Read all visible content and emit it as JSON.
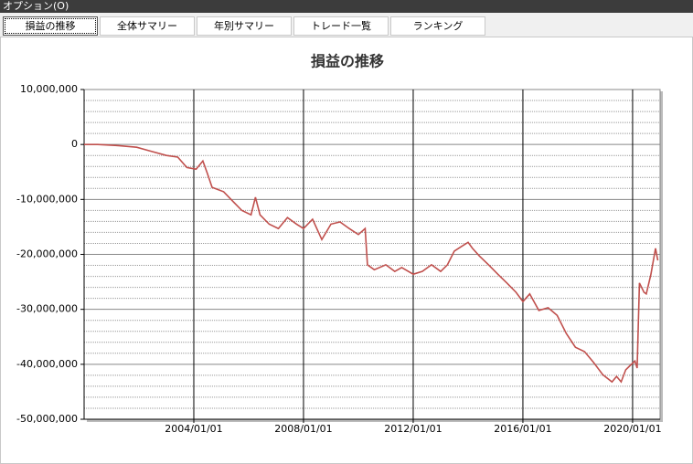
{
  "menu": {
    "title": "オプション(O)"
  },
  "tabs": [
    "損益の推移",
    "全体サマリー",
    "年別サマリー",
    "トレード一覧",
    "ランキング"
  ],
  "chart_data": {
    "type": "line",
    "title": "損益の推移",
    "x": [
      "2000/01/01",
      "2000/07/01",
      "2001/04/01",
      "2001/12/01",
      "2002/06/01",
      "2003/01/01",
      "2003/06/01",
      "2003/10/01",
      "2004/02/01",
      "2004/05/01",
      "2004/07/01",
      "2004/09/01",
      "2005/02/01",
      "2005/06/01",
      "2005/10/01",
      "2006/02/01",
      "2006/04/01",
      "2006/06/01",
      "2006/10/01",
      "2007/02/01",
      "2007/06/01",
      "2007/10/01",
      "2008/01/01",
      "2008/05/01",
      "2008/09/01",
      "2009/01/01",
      "2009/05/01",
      "2009/09/01",
      "2010/01/01",
      "2010/04/01",
      "2010/05/01",
      "2010/08/01",
      "2011/01/01",
      "2011/05/01",
      "2011/08/01",
      "2012/01/01",
      "2012/05/01",
      "2012/09/01",
      "2013/01/01",
      "2013/04/01",
      "2013/07/01",
      "2013/10/01",
      "2014/01/01",
      "2014/03/01",
      "2014/06/01",
      "2014/10/01",
      "2015/02/01",
      "2015/06/01",
      "2015/10/01",
      "2016/01/01",
      "2016/04/01",
      "2016/08/01",
      "2016/12/01",
      "2017/04/01",
      "2017/08/01",
      "2017/12/01",
      "2018/04/01",
      "2018/08/01",
      "2018/12/01",
      "2019/04/01",
      "2019/06/01",
      "2019/08/01",
      "2019/10/01",
      "2019/12/01",
      "2020/02/01",
      "2020/03/01",
      "2020/04/01",
      "2020/06/01",
      "2020/07/01",
      "2020/09/01",
      "2020/11/01",
      "2020/12/01"
    ],
    "series": [
      {
        "color": "#c0504d",
        "values": [
          0,
          0,
          -200000,
          -500000,
          -1200000,
          -2000000,
          -2300000,
          -4200000,
          -4500000,
          -3000000,
          -5300000,
          -7800000,
          -8600000,
          -10300000,
          -12000000,
          -12800000,
          -9600000,
          -12800000,
          -14500000,
          -15300000,
          -13300000,
          -14500000,
          -15300000,
          -13600000,
          -17300000,
          -14500000,
          -14100000,
          -15300000,
          -16400000,
          -15300000,
          -21900000,
          -22800000,
          -21900000,
          -23100000,
          -22400000,
          -23600000,
          -23100000,
          -21900000,
          -23100000,
          -21900000,
          -19400000,
          -18600000,
          -17800000,
          -18900000,
          -20300000,
          -21900000,
          -23600000,
          -25200000,
          -26900000,
          -28600000,
          -27200000,
          -30200000,
          -29700000,
          -31100000,
          -34400000,
          -36900000,
          -37700000,
          -39700000,
          -41900000,
          -43200000,
          -42200000,
          -43200000,
          -41000000,
          -40200000,
          -39400000,
          -40700000,
          -25200000,
          -26900000,
          -27200000,
          -23600000,
          -18900000,
          -21100000
        ]
      }
    ],
    "xlim": [
      "2000/01/01",
      "2021/01/01"
    ],
    "xticks": [
      "2004/01/01",
      "2008/01/01",
      "2012/01/01",
      "2016/01/01",
      "2020/01/01"
    ],
    "ylim": [
      -50000000,
      10000000
    ],
    "yticks": [
      {
        "value": -50000000,
        "label": "-50,000,000"
      },
      {
        "value": -40000000,
        "label": "-40,000,000"
      },
      {
        "value": -30000000,
        "label": "-30,000,000"
      },
      {
        "value": -20000000,
        "label": "-20,000,000"
      },
      {
        "value": -10000000,
        "label": "-10,000,000"
      },
      0,
      {
        "value": 10000000,
        "label": "10,000,000"
      }
    ],
    "grid": true
  }
}
